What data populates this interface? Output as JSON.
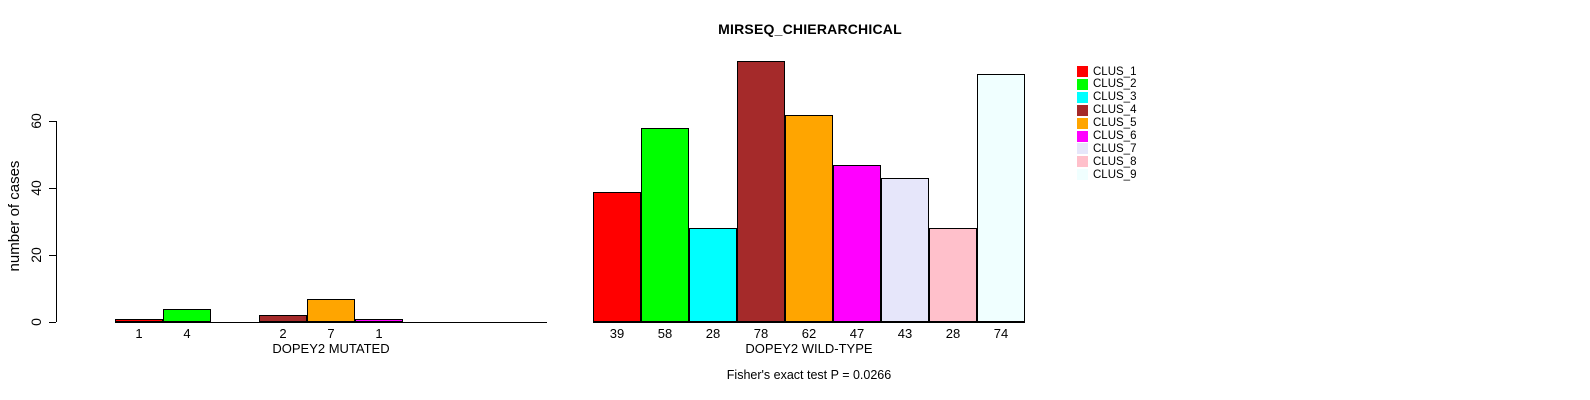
{
  "chart_data": {
    "type": "bar",
    "title": "MIRSEQ_CHIERARCHICAL",
    "ylabel": "number of cases",
    "ylim": [
      0,
      80
    ],
    "yticks": [
      0,
      20,
      40,
      60
    ],
    "grid": false,
    "legend_position": "top-right",
    "series": [
      {
        "name": "CLUS_1",
        "color": "#FF0000"
      },
      {
        "name": "CLUS_2",
        "color": "#00FF00"
      },
      {
        "name": "CLUS_3",
        "color": "#00FFFF"
      },
      {
        "name": "CLUS_4",
        "color": "#A52A2A"
      },
      {
        "name": "CLUS_5",
        "color": "#FFA500"
      },
      {
        "name": "CLUS_6",
        "color": "#FF00FF"
      },
      {
        "name": "CLUS_7",
        "color": "#E6E6FA"
      },
      {
        "name": "CLUS_8",
        "color": "#FFC0CB"
      },
      {
        "name": "CLUS_9",
        "color": "#F0FFFF"
      }
    ],
    "groups": [
      {
        "label": "DOPEY2 MUTATED",
        "values": [
          1,
          4,
          0,
          2,
          7,
          1,
          0,
          0,
          0
        ]
      },
      {
        "label": "DOPEY2 WILD-TYPE",
        "values": [
          39,
          58,
          28,
          78,
          62,
          47,
          43,
          28,
          74
        ]
      }
    ],
    "annotation": "Fisher's exact test P = 0.0266",
    "axis_color": "#000000",
    "bar_border_color": "#000000"
  }
}
